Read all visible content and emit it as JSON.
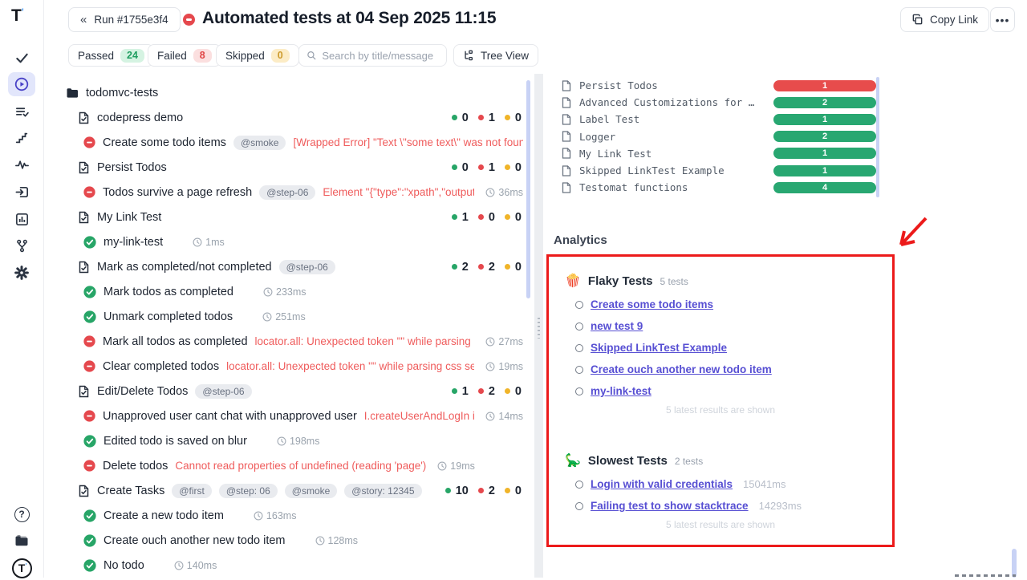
{
  "header": {
    "back_icon": "«",
    "run_button": "Run #1755e3f4",
    "title": "Automated tests at 04 Sep 2025 11:15",
    "copy_link": "Copy Link",
    "more": "•••"
  },
  "filters": {
    "passed_label": "Passed",
    "passed_count": "24",
    "failed_label": "Failed",
    "failed_count": "8",
    "skipped_label": "Skipped",
    "skipped_count": "0",
    "search_placeholder": "Search by title/message",
    "tree_view_label": "Tree View"
  },
  "colors": {
    "passed": "#27a567",
    "failed": "#e5484d",
    "skipped": "#f0b429",
    "bar_green": "#28a771",
    "bar_red": "#e74c4c",
    "link": "#574fd3",
    "annotation": "#ec1a1a",
    "accent": "#4a43c7"
  },
  "sidebar": {
    "icons": [
      "check-icon",
      "run-play-icon",
      "list-check-icon",
      "steps-icon",
      "pulse-icon",
      "import-icon",
      "bar-chart-icon",
      "git-branch-icon",
      "gear-icon",
      "help-icon",
      "docs-folder-icon",
      "logo-icon"
    ]
  },
  "tree": {
    "rows": [
      {
        "type": "folder",
        "title": "todomvc-tests"
      },
      {
        "type": "suite",
        "title": "codepress demo",
        "counts": [
          "0",
          "1",
          "0"
        ]
      },
      {
        "type": "test",
        "status": "failed",
        "title": "Create some todo items",
        "tags": [
          "@smoke"
        ],
        "error": "[Wrapped Error] \"Text \\\"some text\\\" was not found"
      },
      {
        "type": "suite",
        "title": "Persist Todos",
        "counts": [
          "0",
          "1",
          "0"
        ]
      },
      {
        "type": "test",
        "status": "failed",
        "title": "Todos survive a page refresh",
        "tags": [
          "@step-06"
        ],
        "error": "Element \"{\"type\":\"xpath\",\"output\":\"",
        "duration": "36ms"
      },
      {
        "type": "suite",
        "title": "My Link Test",
        "counts": [
          "1",
          "0",
          "0"
        ]
      },
      {
        "type": "test",
        "status": "passed",
        "title": "my-link-test",
        "duration": "1ms"
      },
      {
        "type": "suite",
        "title": "Mark as completed/not completed",
        "tags": [
          "@step-06"
        ],
        "counts": [
          "2",
          "2",
          "0"
        ]
      },
      {
        "type": "test",
        "status": "passed",
        "title": "Mark todos as completed",
        "duration": "233ms"
      },
      {
        "type": "test",
        "status": "passed",
        "title": "Unmark completed todos",
        "duration": "251ms"
      },
      {
        "type": "test",
        "status": "failed",
        "title": "Mark all todos as completed",
        "error": "locator.all: Unexpected token \"\" while parsing css",
        "duration": "27ms"
      },
      {
        "type": "test",
        "status": "failed",
        "title": "Clear completed todos",
        "error": "locator.all: Unexpected token \"\" while parsing css selec",
        "duration": "19ms"
      },
      {
        "type": "suite",
        "title": "Edit/Delete Todos",
        "tags": [
          "@step-06"
        ],
        "counts": [
          "1",
          "2",
          "0"
        ]
      },
      {
        "type": "test",
        "status": "failed",
        "title": "Unapproved user cant chat with unapproved user",
        "error": "I.createUserAndLogIn is r",
        "duration": "14ms"
      },
      {
        "type": "test",
        "status": "passed",
        "title": "Edited todo is saved on blur",
        "duration": "198ms"
      },
      {
        "type": "test",
        "status": "failed",
        "title": "Delete todos",
        "error": "Cannot read properties of undefined (reading 'page')",
        "duration": "19ms"
      },
      {
        "type": "suite",
        "title": "Create Tasks",
        "tags": [
          "@first",
          "@step: 06",
          "@smoke",
          "@story: 12345"
        ],
        "counts": [
          "10",
          "2",
          "0"
        ]
      },
      {
        "type": "test",
        "status": "passed",
        "title": "Create a new todo item",
        "duration": "163ms"
      },
      {
        "type": "test",
        "status": "passed",
        "title": "Create ouch another new todo item",
        "duration": "128ms"
      },
      {
        "type": "test",
        "status": "passed",
        "title": "No todo",
        "duration": "140ms"
      }
    ]
  },
  "suite_summary": {
    "items": [
      {
        "name": "Persist Todos",
        "count": "1",
        "color": "#e74c4c"
      },
      {
        "name": "Advanced Customizations for …",
        "count": "2",
        "color": "#28a771"
      },
      {
        "name": "Label Test",
        "count": "1",
        "color": "#28a771"
      },
      {
        "name": "Logger",
        "count": "2",
        "color": "#28a771"
      },
      {
        "name": "My Link Test",
        "count": "1",
        "color": "#28a771"
      },
      {
        "name": "Skipped LinkTest Example",
        "count": "1",
        "color": "#28a771"
      },
      {
        "name": "Testomat functions",
        "count": "4",
        "color": "#28a771"
      }
    ]
  },
  "analytics": {
    "heading": "Analytics",
    "flaky": {
      "emoji": "🍿",
      "title": "Flaky Tests",
      "count_label": "5 tests",
      "items": [
        "Create some todo items",
        "new test 9",
        "Skipped LinkTest Example",
        "Create ouch another new todo item",
        "my-link-test"
      ],
      "footer": "5 latest results are shown"
    },
    "slowest": {
      "emoji": "🦕",
      "title": "Slowest Tests",
      "count_label": "2 tests",
      "items": [
        {
          "label": "Login with valid credentials",
          "duration": "15041ms"
        },
        {
          "label": "Failing test to show stacktrace",
          "duration": "14293ms"
        }
      ],
      "footer": "5 latest results are shown"
    }
  }
}
